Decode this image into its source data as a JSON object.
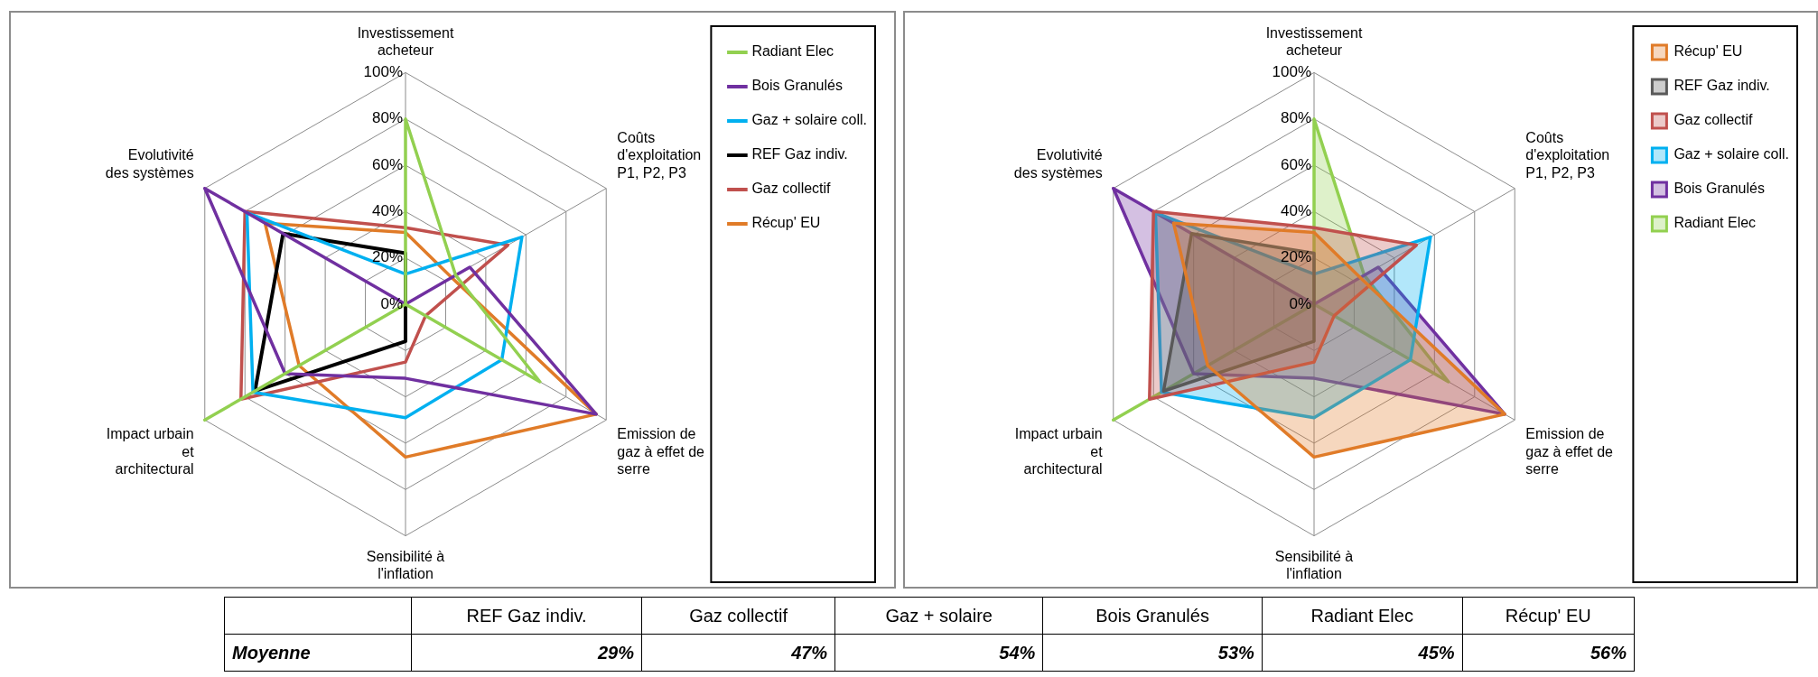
{
  "chart_data": [
    {
      "type": "radar",
      "categories": [
        "Investissement acheteur",
        "Coûts d'exploitation P1, P2, P3",
        "Emission de gaz à effet de serre",
        "Sensibilité à l'inflation",
        "Impact urbain et architectural",
        "Evolutivité des systèmes"
      ],
      "ylim": [
        0,
        100
      ],
      "yticks": [
        {
          "value": 0,
          "label": "0%"
        },
        {
          "value": 20,
          "label": "20%"
        },
        {
          "value": 40,
          "label": "40%"
        },
        {
          "value": 60,
          "label": "60%"
        },
        {
          "value": 80,
          "label": "80%"
        },
        {
          "value": 100,
          "label": "100%"
        }
      ],
      "grid": true,
      "legend": "top right",
      "marker": "none",
      "series": [
        {
          "name": "Radiant Elec",
          "color": "#92d050",
          "values": [
            80,
            25,
            67,
            0,
            100,
            0
          ]
        },
        {
          "name": "Bois Granulés",
          "color": "#7030a0",
          "values": [
            0,
            32,
            95,
            32,
            60,
            100
          ]
        },
        {
          "name": "Gaz + solaire coll.",
          "color": "#00b0f0",
          "values": [
            13,
            58,
            48,
            49,
            76,
            79
          ]
        },
        {
          "name": "REF Gaz indiv.",
          "color": "#000000",
          "values": [
            22,
            0,
            0,
            16,
            75,
            61
          ]
        },
        {
          "name": "Gaz collectif",
          "color": "#c0504d",
          "values": [
            33,
            51,
            10,
            25,
            82,
            80
          ]
        },
        {
          "name": "Récup' EU",
          "color": "#e07b28",
          "values": [
            31,
            23,
            95,
            66,
            53,
            70
          ]
        }
      ]
    },
    {
      "type": "radar",
      "categories": [
        "Investissement acheteur",
        "Coûts d'exploitation P1, P2, P3",
        "Emission de gaz à effet de serre",
        "Sensibilité à l'inflation",
        "Impact urbain et architectural",
        "Evolutivité des systèmes"
      ],
      "ylim": [
        0,
        100
      ],
      "yticks": [
        {
          "value": 0,
          "label": "0%"
        },
        {
          "value": 20,
          "label": "20%"
        },
        {
          "value": 40,
          "label": "40%"
        },
        {
          "value": 60,
          "label": "60%"
        },
        {
          "value": 80,
          "label": "80%"
        },
        {
          "value": 100,
          "label": "100%"
        }
      ],
      "grid": true,
      "legend": "top right",
      "marker": "none",
      "series": [
        {
          "name": "Récup' EU",
          "type": "area",
          "color": "#e07b28",
          "values": [
            31,
            23,
            95,
            66,
            53,
            70
          ]
        },
        {
          "name": "REF Gaz indiv.",
          "type": "area",
          "color": "#595959",
          "values": [
            22,
            0,
            0,
            16,
            75,
            61
          ]
        },
        {
          "name": "Gaz collectif",
          "type": "area",
          "color": "#c0504d",
          "values": [
            33,
            51,
            10,
            25,
            82,
            80
          ]
        },
        {
          "name": "Gaz + solaire coll.",
          "type": "area",
          "color": "#00b0f0",
          "values": [
            13,
            58,
            48,
            49,
            76,
            79
          ]
        },
        {
          "name": "Bois Granulés",
          "type": "area",
          "color": "#7030a0",
          "values": [
            0,
            32,
            95,
            32,
            60,
            100
          ]
        },
        {
          "name": "Radiant Elec",
          "type": "area",
          "color": "#92d050",
          "values": [
            80,
            25,
            67,
            0,
            100,
            0
          ]
        }
      ]
    },
    {
      "type": "other",
      "categories": [
        "REF Gaz indiv.",
        "Gaz collectif",
        "Gaz + solaire",
        "Bois Granulés",
        "Radiant Elec",
        "Récup' EU"
      ],
      "series": [
        {
          "name": "Moyenne",
          "values": [
            29,
            47,
            54,
            53,
            45,
            56
          ],
          "value_labels": [
            "29%",
            "47%",
            "54%",
            "53%",
            "45%",
            "56%"
          ]
        }
      ]
    }
  ]
}
